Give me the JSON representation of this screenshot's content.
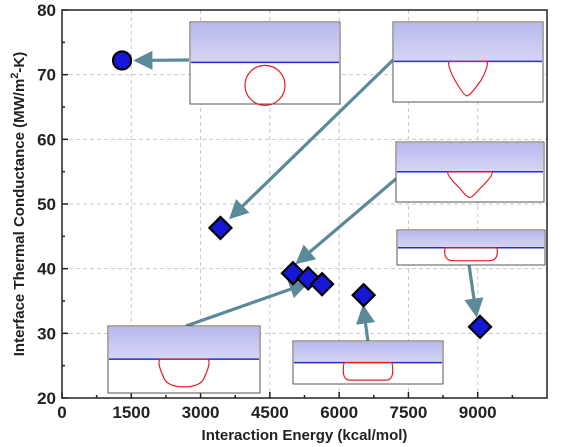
{
  "chart_data": {
    "type": "scatter",
    "xlabel": "Interaction Energy (kcal/mol)",
    "ylabel": "Interface Thermal Conductance (MW/m²-K)",
    "ylabel_parts": {
      "before": "Interface Thermal Conductance (MW/m",
      "sup": "2",
      "after": "-K)"
    },
    "xlim": [
      0,
      10500
    ],
    "ylim": [
      20,
      80
    ],
    "x_ticks": [
      0,
      1500,
      3000,
      4500,
      6000,
      7500,
      9000
    ],
    "y_ticks": [
      20,
      30,
      40,
      50,
      60,
      70,
      80
    ],
    "grid": true,
    "points": [
      {
        "x": 1300,
        "y": 72.2,
        "marker": "circle"
      },
      {
        "x": 3430,
        "y": 46.3,
        "marker": "diamond"
      },
      {
        "x": 5000,
        "y": 39.3,
        "marker": "diamond"
      },
      {
        "x": 5330,
        "y": 38.5,
        "marker": "diamond"
      },
      {
        "x": 5630,
        "y": 37.6,
        "marker": "diamond"
      },
      {
        "x": 6530,
        "y": 35.9,
        "marker": "diamond"
      },
      {
        "x": 9050,
        "y": 31.0,
        "marker": "diamond"
      }
    ],
    "insets": [
      {
        "name": "inset-circle-droplet",
        "shape": "circle"
      },
      {
        "name": "inset-rounded-triangle-droplet",
        "shape": "rounded-triangle"
      },
      {
        "name": "inset-flattened-droplet",
        "shape": "flattened-triangle"
      },
      {
        "name": "inset-thin-lens-droplet",
        "shape": "thin-lens"
      },
      {
        "name": "inset-bell-droplet",
        "shape": "bell"
      },
      {
        "name": "inset-low-dome-droplet",
        "shape": "low-dome"
      }
    ]
  },
  "colors": {
    "marker_fill": "#1717d8",
    "marker_edge": "#000000",
    "arrow": "#5b8a99",
    "water_region": "#c8c8f2",
    "interface_line": "#2a2ad0",
    "droplet_outline": "#e02020"
  }
}
